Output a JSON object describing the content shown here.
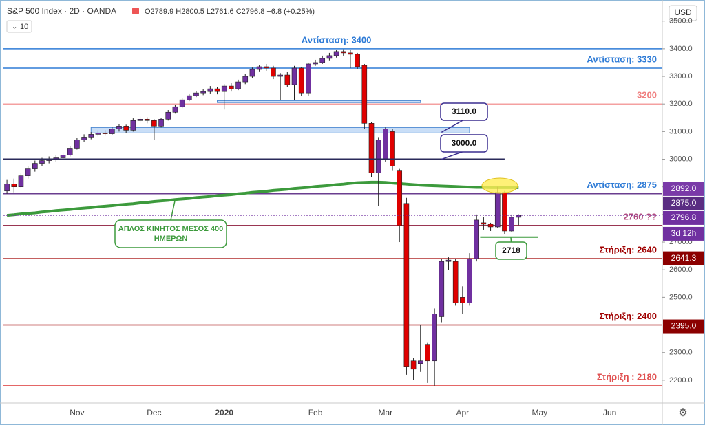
{
  "chart_data": {
    "type": "candlestick",
    "title": "S&P 500 Index · 2D · OANDA",
    "ohlc_text": "O2789.9 H2800.5 L2761.6 C2796.8 +6.8 (+0.25%)",
    "indicator_text": "10",
    "currency": "USD",
    "countdown": "3d 12h",
    "up_color": "#7030a0",
    "down_color": "#e00000",
    "categories": [
      null,
      null,
      null,
      null,
      null,
      null,
      null,
      null,
      null,
      null,
      "Nov",
      null,
      null,
      null,
      null,
      null,
      null,
      null,
      null,
      null,
      null,
      "Dec",
      null,
      null,
      null,
      null,
      null,
      null,
      null,
      null,
      null,
      "2020",
      null,
      null,
      null,
      null,
      null,
      null,
      null,
      null,
      null,
      null,
      null,
      null,
      "Feb",
      null,
      null,
      null,
      null,
      null,
      null,
      null,
      null,
      null,
      "Mar",
      null,
      null,
      null,
      null,
      null,
      null,
      null,
      null,
      null,
      null,
      "Apr",
      null,
      null,
      null,
      null,
      null,
      null,
      null,
      null,
      null,
      null,
      "May",
      null,
      null,
      null,
      null,
      null,
      null,
      null,
      null,
      null,
      "Jun",
      null,
      null,
      null,
      null,
      null,
      null,
      null
    ],
    "open": [
      2885,
      2910,
      2900,
      2940,
      2965,
      2985,
      2995,
      3000,
      3005,
      3015,
      3040,
      3070,
      3080,
      3090,
      3095,
      3092,
      3110,
      3120,
      3105,
      3140,
      3145,
      3140,
      3120,
      3145,
      3170,
      3190,
      3215,
      3230,
      3240,
      3245,
      3255,
      3245,
      3265,
      3255,
      3280,
      3300,
      3325,
      3335,
      3330,
      3300,
      3305,
      3270,
      3330,
      3240,
      3345,
      3350,
      3365,
      3375,
      3390,
      3385,
      3380,
      3340,
      3130,
      2950,
      3000,
      3100,
      2960,
      2840,
      2270,
      2260,
      2330,
      2270,
      2430,
      2630,
      2630,
      2500,
      2480,
      2640,
      2770,
      2765,
      2755,
      2880,
      2740,
      2789.9,
      null,
      null,
      null,
      null,
      null,
      null,
      null,
      null,
      null,
      null,
      null,
      null,
      null,
      null,
      null,
      null,
      null,
      null,
      null,
      null
    ],
    "high": [
      2925,
      2930,
      2950,
      2975,
      2995,
      3005,
      3010,
      3015,
      3025,
      3048,
      3078,
      3090,
      3098,
      3105,
      3105,
      3118,
      3128,
      3125,
      3148,
      3155,
      3152,
      3145,
      3150,
      3178,
      3198,
      3222,
      3238,
      3246,
      3255,
      3265,
      3262,
      3272,
      3275,
      3288,
      3308,
      3332,
      3342,
      3345,
      3338,
      3312,
      3315,
      3338,
      3335,
      3350,
      3360,
      3375,
      3385,
      3395,
      3398,
      3395,
      3385,
      3345,
      3135,
      3080,
      3115,
      3110,
      2965,
      2860,
      2280,
      2400,
      2335,
      2460,
      2640,
      2645,
      2640,
      2540,
      2660,
      2800,
      2790,
      2770,
      2900,
      2885,
      2800,
      2800.5,
      null,
      null,
      null,
      null,
      null,
      null,
      null,
      null,
      null,
      null,
      null,
      null,
      null,
      null,
      null,
      null,
      null,
      null,
      null,
      null
    ],
    "low": [
      2875,
      2880,
      2895,
      2930,
      2955,
      2975,
      2985,
      2990,
      2998,
      3010,
      3035,
      3062,
      3072,
      3082,
      3085,
      3086,
      3100,
      3095,
      3100,
      3132,
      3130,
      3070,
      3115,
      3140,
      3165,
      3185,
      3210,
      3225,
      3232,
      3238,
      3235,
      3180,
      3245,
      3250,
      3272,
      3295,
      3318,
      3320,
      3290,
      3215,
      3262,
      3215,
      3230,
      3230,
      3338,
      3345,
      3358,
      3368,
      3375,
      3330,
      3325,
      3110,
      2935,
      2830,
      2990,
      2960,
      2700,
      2220,
      2200,
      2230,
      2190,
      2180,
      2410,
      2600,
      2470,
      2440,
      2470,
      2630,
      2745,
      2740,
      2750,
      2730,
      2735,
      2761.6,
      null,
      null,
      null,
      null,
      null,
      null,
      null,
      null,
      null,
      null,
      null,
      null,
      null,
      null,
      null,
      null,
      null,
      null,
      null,
      null
    ],
    "close": [
      2910,
      2900,
      2940,
      2965,
      2985,
      2995,
      3000,
      3005,
      3015,
      3040,
      3070,
      3080,
      3090,
      3095,
      3092,
      3110,
      3120,
      3105,
      3140,
      3145,
      3140,
      3120,
      3145,
      3170,
      3190,
      3215,
      3230,
      3240,
      3245,
      3255,
      3245,
      3265,
      3255,
      3280,
      3300,
      3325,
      3335,
      3330,
      3300,
      3305,
      3270,
      3330,
      3240,
      3345,
      3350,
      3365,
      3375,
      3390,
      3385,
      3380,
      3335,
      3130,
      2950,
      3070,
      3110,
      2975,
      2760,
      2250,
      2240,
      2270,
      2270,
      2440,
      2630,
      2635,
      2480,
      2480,
      2640,
      2780,
      2765,
      2755,
      2880,
      2740,
      2790,
      2796.8,
      null,
      null,
      null,
      null,
      null,
      null,
      null,
      null,
      null,
      null,
      null,
      null,
      null,
      null,
      null,
      null,
      null,
      null,
      null,
      null
    ],
    "ma": {
      "label": "ΑΠΛΟΣ ΚΙΝΗΤΟΣ ΜΕΣΟΣ 400 ΗΜΕΡΩΝ",
      "color": "#3c9a3c",
      "values": [
        2797,
        2799,
        2802,
        2804,
        2806,
        2809,
        2811,
        2814,
        2816,
        2818,
        2821,
        2823,
        2825,
        2828,
        2830,
        2832,
        2835,
        2837,
        2839,
        2842,
        2844,
        2847,
        2849,
        2851,
        2854,
        2856,
        2858,
        2861,
        2863,
        2865,
        2868,
        2870,
        2872,
        2875,
        2877,
        2880,
        2882,
        2884,
        2887,
        2889,
        2891,
        2894,
        2896,
        2898,
        2901,
        2903,
        2905,
        2908,
        2910,
        2913,
        2915,
        2916,
        2917,
        2917,
        2916,
        2914,
        2912,
        2910,
        2908,
        2906,
        2905,
        2904,
        2903,
        2902,
        2901,
        2900,
        2899,
        2898,
        2898,
        2897,
        2897,
        2897,
        2897,
        2897,
        null,
        null,
        null,
        null,
        null,
        null,
        null,
        null,
        null,
        null,
        null,
        null,
        null,
        null,
        null,
        null,
        null,
        null,
        null,
        null
      ]
    },
    "levels": [
      {
        "value": 3400,
        "label": "Αντίσταση: 3400",
        "color": "#2e7bd6",
        "label_color": "#2e7bd6",
        "label_position": "center"
      },
      {
        "value": 3330,
        "label": "Αντίσταση: 3330",
        "color": "#2e7bd6",
        "label_color": "#2e7bd6",
        "label_position": "right"
      },
      {
        "value": 3200,
        "label": "3200",
        "color": "#f4a0a0",
        "label_color": "#f08080",
        "label_position": "right"
      },
      {
        "value": 2875,
        "label": "Αντίσταση: 2875",
        "color": "#6a3d8f",
        "label_color": "#2e7bd6",
        "label_position": "right"
      },
      {
        "value": 2760,
        "label": "2760 ??",
        "color": "#8b1a3a",
        "label_color": "#b04a80",
        "label_position": "right"
      },
      {
        "value": 2640,
        "label": "Στήριξη: 2640",
        "color": "#a00000",
        "label_color": "#a00000",
        "label_position": "right"
      },
      {
        "value": 2400,
        "label": "Στήριξη: 2400",
        "color": "#a00000",
        "label_color": "#a00000",
        "label_position": "right"
      },
      {
        "value": 2180,
        "label": "Στήριξη : 2180",
        "color": "#e05050",
        "label_color": "#e05050",
        "label_position": "right"
      }
    ],
    "zones": [
      {
        "from": 3095,
        "to": 3115,
        "start": 12,
        "end": 66
      },
      {
        "from": 3205,
        "to": 3212,
        "start": 30,
        "end": 59
      }
    ],
    "callouts": [
      {
        "value": 3110,
        "label": "3110.0",
        "color": "#3a2d8f"
      },
      {
        "value": 3000,
        "label": "3000.0",
        "color": "#3a2d8f"
      },
      {
        "value": 2718,
        "label": "2718",
        "color": "#3c9a3c"
      }
    ],
    "badges": [
      {
        "value": 2892,
        "label": "2892.0",
        "color": "#7a3aa8"
      },
      {
        "value": 2875,
        "label": "2875.0",
        "color": "#5a2d82"
      },
      {
        "value": 2796.8,
        "label": "2796.8",
        "color": "#7030a0"
      },
      {
        "value": 2641.3,
        "label": "2641.3",
        "color": "#8b0000"
      },
      {
        "value": 2395,
        "label": "2395.0",
        "color": "#8b0000"
      }
    ],
    "current_badge": 2,
    "ylim": [
      2120,
      3564
    ],
    "yticks": [
      {
        "value": 3500,
        "label": "3500.0"
      },
      {
        "value": 3400,
        "label": "3400.0"
      },
      {
        "value": 3300,
        "label": "3300.0"
      },
      {
        "value": 3200,
        "label": "3200.0"
      },
      {
        "value": 3100,
        "label": "3100.0"
      },
      {
        "value": 3000,
        "label": "3000.0"
      },
      {
        "value": 2900,
        "label": "2900.0"
      },
      {
        "value": 2800,
        "label": "2800.0"
      },
      {
        "value": 2700,
        "label": "2700.0"
      },
      {
        "value": 2600,
        "label": "2600.0"
      },
      {
        "value": 2500,
        "label": "2500.0"
      },
      {
        "value": 2400,
        "label": "2400.0"
      },
      {
        "value": 2300,
        "label": "2300.0"
      },
      {
        "value": 2200,
        "label": "2200.0"
      }
    ]
  }
}
